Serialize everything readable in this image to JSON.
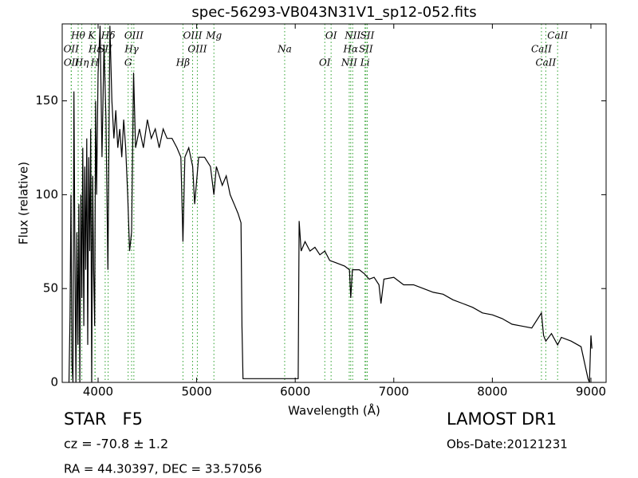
{
  "chart_data": {
    "type": "line",
    "title": "spec-56293-VB043N31V1_sp12-052.fits",
    "x_label": "Wavelength (Å)",
    "y_label": "Flux (relative)",
    "xlim": [
      3636,
      9154
    ],
    "ylim": [
      0,
      191
    ],
    "xticks": [
      4000,
      5000,
      6000,
      7000,
      8000,
      9000
    ],
    "yticks": [
      0,
      50,
      100,
      150
    ],
    "grid": false,
    "x": [
      3705,
      3715,
      3725,
      3735,
      3745,
      3755,
      3765,
      3775,
      3785,
      3795,
      3805,
      3815,
      3825,
      3835,
      3845,
      3855,
      3865,
      3875,
      3885,
      3895,
      3905,
      3915,
      3925,
      3935,
      3945,
      3955,
      3965,
      3975,
      3985,
      4000,
      4020,
      4040,
      4060,
      4080,
      4100,
      4120,
      4140,
      4160,
      4180,
      4200,
      4220,
      4240,
      4260,
      4280,
      4300,
      4320,
      4340,
      4360,
      4380,
      4420,
      4460,
      4500,
      4540,
      4580,
      4620,
      4660,
      4700,
      4750,
      4800,
      4840,
      4861,
      4880,
      4920,
      4960,
      4980,
      5020,
      5080,
      5140,
      5175,
      5200,
      5260,
      5300,
      5340,
      5380,
      5420,
      5450,
      5460,
      5470,
      5600,
      5800,
      6000,
      6030,
      6040,
      6060,
      6100,
      6150,
      6200,
      6250,
      6300,
      6350,
      6400,
      6450,
      6500,
      6550,
      6563,
      6580,
      6650,
      6700,
      6750,
      6800,
      6850,
      6870,
      6900,
      7000,
      7100,
      7200,
      7300,
      7400,
      7500,
      7600,
      7700,
      7800,
      7900,
      8000,
      8100,
      8200,
      8300,
      8400,
      8498,
      8520,
      8542,
      8600,
      8662,
      8700,
      8800,
      8900,
      8970,
      8985,
      9000,
      9010
    ],
    "series": [
      {
        "color": "#000000",
        "values": [
          0,
          35,
          100,
          10,
          0,
          155,
          70,
          0,
          80,
          20,
          95,
          0,
          100,
          45,
          125,
          30,
          115,
          60,
          130,
          20,
          120,
          70,
          135,
          0,
          110,
          60,
          30,
          150,
          100,
          165,
          190,
          120,
          180,
          140,
          60,
          190,
          150,
          130,
          145,
          125,
          135,
          120,
          140,
          125,
          100,
          70,
          80,
          165,
          125,
          135,
          125,
          140,
          130,
          135,
          125,
          135,
          130,
          130,
          125,
          120,
          75,
          120,
          125,
          115,
          95,
          120,
          120,
          115,
          100,
          115,
          105,
          110,
          100,
          95,
          90,
          85,
          30,
          2,
          2,
          2,
          2,
          2,
          86,
          70,
          75,
          70,
          72,
          68,
          70,
          65,
          64,
          63,
          62,
          60,
          45,
          60,
          60,
          58,
          55,
          56,
          52,
          42,
          55,
          56,
          52,
          52,
          50,
          48,
          47,
          44,
          42,
          40,
          37,
          36,
          34,
          31,
          30,
          29,
          37,
          25,
          22,
          26,
          20,
          24,
          22,
          19,
          2,
          0,
          25,
          18
        ]
      }
    ],
    "line_color": "#2ca02c",
    "lines": [
      {
        "label": "Hθ",
        "x": 3798
      },
      {
        "label": "OII",
        "x": 3727
      },
      {
        "label": "OII",
        "x": 3729
      },
      {
        "label": "K",
        "x": 3934
      },
      {
        "label": "Hε",
        "x": 3970
      },
      {
        "label": "Hη",
        "x": 3835
      },
      {
        "label": "Hδ",
        "x": 4102
      },
      {
        "label": "SII",
        "x": 4072
      },
      {
        "label": "H",
        "x": 3968
      },
      {
        "label": "OIII",
        "x": 4363
      },
      {
        "label": "Hγ",
        "x": 4340
      },
      {
        "label": "G",
        "x": 4305
      },
      {
        "label": "OIII",
        "x": 4959
      },
      {
        "label": "OIII",
        "x": 5007
      },
      {
        "label": "Hβ",
        "x": 4861
      },
      {
        "label": "Mg",
        "x": 5175
      },
      {
        "label": "Na",
        "x": 5893
      },
      {
        "label": "OI",
        "x": 6300
      },
      {
        "label": "OI",
        "x": 6364
      },
      {
        "label": "Hα",
        "x": 6563
      },
      {
        "label": "NII",
        "x": 6548
      },
      {
        "label": "NII",
        "x": 6583
      },
      {
        "label": "SII",
        "x": 6717
      },
      {
        "label": "Li",
        "x": 6708
      },
      {
        "label": "SII",
        "x": 6731
      },
      {
        "label": "CaII",
        "x": 8498
      },
      {
        "label": "CaII",
        "x": 8542
      },
      {
        "label": "CaII",
        "x": 8662
      }
    ]
  },
  "footer": {
    "class": "STAR   F5",
    "cz": "cz = -70.8 ± 1.2",
    "coords": "RA = 44.30397, DEC = 33.57056",
    "survey": "LAMOST DR1",
    "date": "Obs-Date:20121231"
  }
}
